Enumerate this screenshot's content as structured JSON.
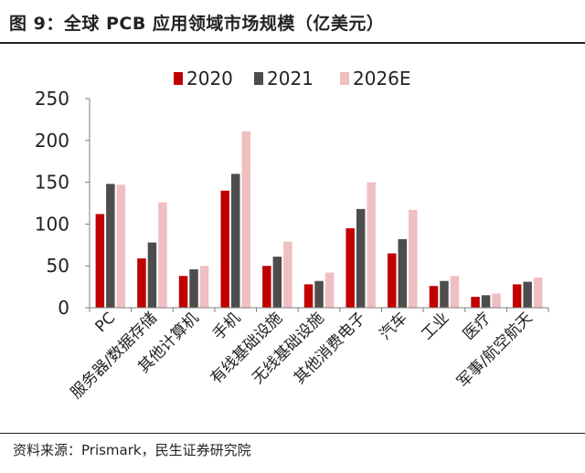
{
  "figure": {
    "title": "图 9：全球 PCB 应用领域市场规模（亿美元）",
    "source": "资料来源：Prismark，民生证券研究院"
  },
  "colors": {
    "s2020": "#c00000",
    "s2021": "#4d4d4d",
    "s2026": "#efbfc1",
    "axis": "#7f7f7f",
    "text": "#222222"
  },
  "chart_data": {
    "type": "bar",
    "title": "全球 PCB 应用领域市场规模（亿美元）",
    "xlabel": "",
    "ylabel": "",
    "ylim": [
      0,
      250
    ],
    "yticks": [
      0,
      50,
      100,
      150,
      200,
      250
    ],
    "grid": false,
    "legend_position": "top-center",
    "categories": [
      "PC",
      "服务器/数据存储",
      "其他计算机",
      "手机",
      "有线基础设施",
      "无线基础设施",
      "其他消费电子",
      "汽车",
      "工业",
      "医疗",
      "军事/航空航天"
    ],
    "series": [
      {
        "name": "2020",
        "values": [
          112,
          59,
          38,
          140,
          50,
          28,
          95,
          65,
          26,
          13,
          28
        ]
      },
      {
        "name": "2021",
        "values": [
          148,
          78,
          46,
          160,
          61,
          32,
          118,
          82,
          32,
          15,
          31
        ]
      },
      {
        "name": "2026E",
        "values": [
          147,
          126,
          50,
          211,
          79,
          42,
          150,
          117,
          38,
          17,
          36
        ]
      }
    ]
  }
}
